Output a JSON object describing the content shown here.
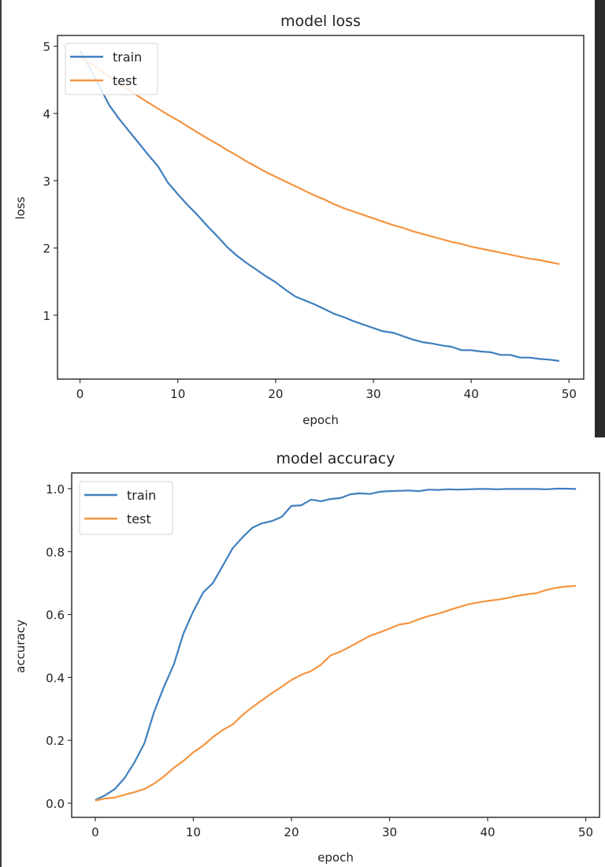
{
  "colors": {
    "train": "#3f7fbf",
    "test": "#f59441",
    "axis": "#333333"
  },
  "chart_data": [
    {
      "type": "line",
      "title": "model loss",
      "xlabel": "epoch",
      "ylabel": "loss",
      "xlim": [
        -2.3,
        51.5
      ],
      "ylim": [
        0.05,
        5.16
      ],
      "xticks": [
        0,
        10,
        20,
        30,
        40,
        50
      ],
      "yticks": [
        1,
        2,
        3,
        4,
        5
      ],
      "xtick_labels": [
        "0",
        "10",
        "20",
        "30",
        "40",
        "50"
      ],
      "ytick_labels": [
        "1",
        "2",
        "3",
        "4",
        "5"
      ],
      "legend_position": "upper-left",
      "grid": false,
      "x": [
        0,
        1,
        2,
        3,
        4,
        5,
        6,
        7,
        8,
        9,
        10,
        11,
        12,
        13,
        14,
        15,
        16,
        17,
        18,
        19,
        20,
        21,
        22,
        23,
        24,
        25,
        26,
        27,
        28,
        29,
        30,
        31,
        32,
        33,
        34,
        35,
        36,
        37,
        38,
        39,
        40,
        41,
        42,
        43,
        44,
        45,
        46,
        47,
        48,
        49
      ],
      "series": [
        {
          "name": "train",
          "values": [
            4.93,
            4.68,
            4.4,
            4.12,
            3.92,
            3.74,
            3.56,
            3.38,
            3.21,
            2.97,
            2.8,
            2.64,
            2.49,
            2.33,
            2.18,
            2.02,
            1.89,
            1.78,
            1.68,
            1.58,
            1.49,
            1.38,
            1.28,
            1.22,
            1.16,
            1.09,
            1.02,
            0.97,
            0.91,
            0.86,
            0.81,
            0.76,
            0.74,
            0.69,
            0.64,
            0.6,
            0.58,
            0.55,
            0.53,
            0.48,
            0.48,
            0.46,
            0.45,
            0.41,
            0.41,
            0.37,
            0.37,
            0.35,
            0.34,
            0.32
          ]
        },
        {
          "name": "test",
          "values": [
            4.85,
            4.75,
            4.65,
            4.55,
            4.45,
            4.35,
            4.25,
            4.16,
            4.07,
            3.98,
            3.9,
            3.81,
            3.72,
            3.63,
            3.55,
            3.46,
            3.38,
            3.29,
            3.21,
            3.13,
            3.06,
            2.99,
            2.92,
            2.85,
            2.78,
            2.72,
            2.65,
            2.59,
            2.54,
            2.49,
            2.44,
            2.39,
            2.34,
            2.3,
            2.25,
            2.21,
            2.17,
            2.13,
            2.09,
            2.06,
            2.02,
            1.99,
            1.96,
            1.93,
            1.9,
            1.87,
            1.84,
            1.82,
            1.79,
            1.76
          ]
        }
      ]
    },
    {
      "type": "line",
      "title": "model accuracy",
      "xlabel": "epoch",
      "ylabel": "accuracy",
      "xlim": [
        -2.4,
        51.4
      ],
      "ylim": [
        -0.045,
        1.05
      ],
      "xticks": [
        0,
        10,
        20,
        30,
        40,
        50
      ],
      "yticks": [
        0.0,
        0.2,
        0.4,
        0.6,
        0.8,
        1.0
      ],
      "xtick_labels": [
        "0",
        "10",
        "20",
        "30",
        "40",
        "50"
      ],
      "ytick_labels": [
        "0.0",
        "0.2",
        "0.4",
        "0.6",
        "0.8",
        "1.0"
      ],
      "legend_position": "upper-left",
      "grid": false,
      "x": [
        0,
        1,
        2,
        3,
        4,
        5,
        6,
        7,
        8,
        9,
        10,
        11,
        12,
        13,
        14,
        15,
        16,
        17,
        18,
        19,
        20,
        21,
        22,
        23,
        24,
        25,
        26,
        27,
        28,
        29,
        30,
        31,
        32,
        33,
        34,
        35,
        36,
        37,
        38,
        39,
        40,
        41,
        42,
        43,
        44,
        45,
        46,
        47,
        48,
        49
      ],
      "series": [
        {
          "name": "train",
          "values": [
            0.01,
            0.025,
            0.045,
            0.08,
            0.13,
            0.19,
            0.29,
            0.37,
            0.44,
            0.54,
            0.61,
            0.67,
            0.7,
            0.755,
            0.81,
            0.845,
            0.875,
            0.89,
            0.897,
            0.91,
            0.945,
            0.947,
            0.965,
            0.96,
            0.967,
            0.97,
            0.982,
            0.985,
            0.983,
            0.99,
            0.992,
            0.993,
            0.994,
            0.992,
            0.997,
            0.996,
            0.998,
            0.997,
            0.998,
            0.999,
            0.999,
            0.998,
            0.999,
            0.999,
            0.999,
            0.999,
            0.998,
            1.0,
            1.0,
            0.999
          ]
        },
        {
          "name": "test",
          "values": [
            0.008,
            0.015,
            0.018,
            0.027,
            0.035,
            0.045,
            0.062,
            0.085,
            0.112,
            0.135,
            0.162,
            0.183,
            0.21,
            0.233,
            0.25,
            0.28,
            0.305,
            0.327,
            0.35,
            0.37,
            0.392,
            0.408,
            0.42,
            0.44,
            0.47,
            0.482,
            0.498,
            0.515,
            0.532,
            0.543,
            0.555,
            0.568,
            0.573,
            0.585,
            0.595,
            0.603,
            0.613,
            0.623,
            0.632,
            0.638,
            0.643,
            0.647,
            0.652,
            0.659,
            0.664,
            0.668,
            0.678,
            0.685,
            0.689,
            0.691
          ]
        }
      ]
    }
  ]
}
